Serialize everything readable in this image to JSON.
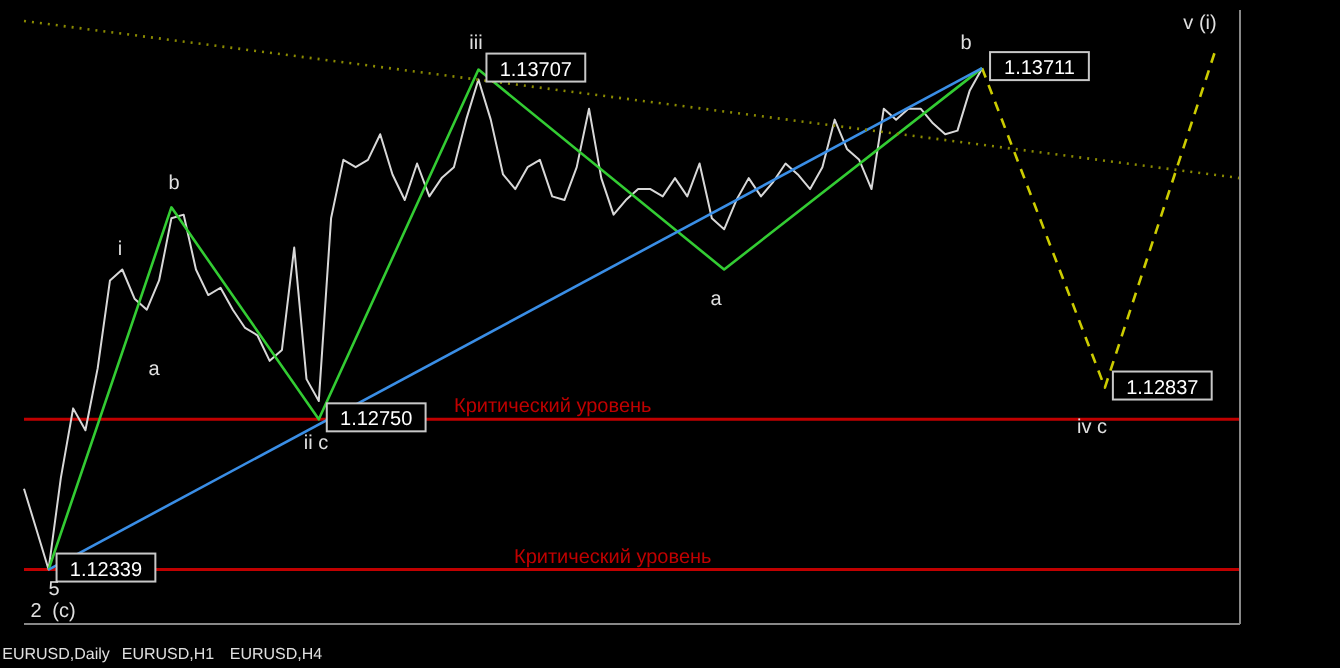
{
  "chart_data": {
    "type": "line",
    "categories": [
      null,
      null,
      null,
      null,
      null,
      null,
      null,
      null,
      null,
      null,
      null,
      null,
      null,
      null,
      null,
      null,
      null,
      null,
      null,
      null,
      null,
      null,
      null,
      null,
      null,
      null,
      null,
      null,
      null,
      null,
      null,
      null,
      null,
      null,
      null,
      null,
      null,
      null,
      null,
      null,
      null,
      null,
      null,
      null,
      null,
      null,
      null,
      null,
      null,
      null,
      null,
      null,
      null,
      null,
      null,
      null,
      null,
      null,
      null,
      null,
      null,
      null,
      null,
      null,
      null,
      null,
      null,
      null,
      null,
      null,
      null,
      null,
      null,
      null,
      null,
      null,
      null,
      null,
      null,
      null,
      null,
      null,
      null,
      null,
      null,
      null,
      null,
      null,
      null,
      null,
      null,
      null,
      null,
      null,
      null,
      null,
      null,
      null,
      null,
      null
    ],
    "series": [
      {
        "color": "#d8d8d8",
        "values": [
          1.1256,
          1.1245,
          1.12339,
          1.1259,
          1.1278,
          1.1272,
          1.1289,
          1.1313,
          1.1316,
          1.1308,
          1.1305,
          1.1313,
          1.133,
          1.1331,
          1.1316,
          1.1309,
          1.1311,
          1.1305,
          1.13,
          1.1298,
          1.1291,
          1.1294,
          1.1322,
          1.1286,
          1.128,
          1.133,
          1.1346,
          1.1344,
          1.1346,
          1.1353,
          1.1342,
          1.1335,
          1.1345,
          1.1336,
          1.1341,
          1.1344,
          1.1357,
          1.1368,
          1.1357,
          1.1342,
          1.1338,
          1.1344,
          1.1346,
          1.1336,
          1.1335,
          1.1344,
          1.136,
          1.1341,
          1.1331,
          1.1335,
          1.1338,
          1.1338,
          1.1336,
          1.1341,
          1.1336,
          1.1345,
          1.133,
          1.1327,
          1.1335,
          1.1341,
          1.1336,
          1.134,
          1.1345,
          1.1342,
          1.1338,
          1.1344,
          1.1357,
          1.1349,
          1.1346,
          1.1338,
          1.136,
          1.1357,
          1.136,
          1.136,
          1.1356,
          1.1353,
          1.1354,
          1.1365,
          1.1371,
          null,
          null,
          null,
          null,
          null,
          null,
          null,
          null,
          null,
          null,
          null,
          null,
          null,
          null,
          null,
          null,
          null,
          null,
          null,
          null,
          null
        ]
      },
      {
        "color": "#33cc33",
        "values": [
          null,
          null,
          1.12339,
          null,
          null,
          null,
          null,
          null,
          null,
          null,
          null,
          null,
          1.1333,
          null,
          null,
          null,
          null,
          null,
          null,
          null,
          null,
          null,
          null,
          null,
          1.1275,
          null,
          null,
          null,
          null,
          null,
          null,
          null,
          null,
          null,
          null,
          null,
          null,
          1.13707,
          null,
          null,
          null,
          null,
          null,
          null,
          null,
          null,
          null,
          null,
          null,
          null,
          null,
          null,
          null,
          null,
          null,
          null,
          null,
          1.1316,
          null,
          null,
          null,
          null,
          null,
          null,
          null,
          null,
          null,
          null,
          null,
          null,
          null,
          null,
          null,
          null,
          null,
          null,
          null,
          null,
          1.13711,
          null,
          null,
          null,
          null,
          null,
          null,
          null,
          null,
          null,
          null,
          null,
          null,
          null,
          null,
          null,
          null,
          null,
          null,
          null,
          null,
          null
        ],
        "value_labels": [
          null,
          null,
          "1.12339",
          null,
          null,
          null,
          null,
          null,
          null,
          null,
          null,
          null,
          null,
          null,
          null,
          null,
          null,
          null,
          null,
          null,
          null,
          null,
          null,
          null,
          "1.12750",
          null,
          null,
          null,
          null,
          null,
          null,
          null,
          null,
          null,
          null,
          null,
          null,
          "1.13707",
          null,
          null,
          null,
          null,
          null,
          null,
          null,
          null,
          null,
          null,
          null,
          null,
          null,
          null,
          null,
          null,
          null,
          null,
          null,
          null,
          null,
          null,
          null,
          null,
          null,
          null,
          null,
          null,
          null,
          null,
          null,
          null,
          null,
          null,
          null,
          null,
          null,
          null,
          null,
          null,
          "1.13711",
          null,
          null,
          null,
          null,
          null,
          null,
          null,
          null,
          null,
          null,
          null,
          null,
          null,
          null,
          null,
          null,
          null,
          null,
          null,
          null,
          null
        ]
      },
      {
        "color": "#cccc00",
        "line_style": "dashed",
        "values": [
          null,
          null,
          null,
          null,
          null,
          null,
          null,
          null,
          null,
          null,
          null,
          null,
          null,
          null,
          null,
          null,
          null,
          null,
          null,
          null,
          null,
          null,
          null,
          null,
          null,
          null,
          null,
          null,
          null,
          null,
          null,
          null,
          null,
          null,
          null,
          null,
          null,
          null,
          null,
          null,
          null,
          null,
          null,
          null,
          null,
          null,
          null,
          null,
          null,
          null,
          null,
          null,
          null,
          null,
          null,
          null,
          null,
          null,
          null,
          null,
          null,
          null,
          null,
          null,
          null,
          null,
          null,
          null,
          null,
          null,
          null,
          null,
          null,
          null,
          null,
          null,
          null,
          null,
          1.13711,
          null,
          null,
          null,
          null,
          null,
          null,
          null,
          null,
          null,
          1.12837,
          null,
          null,
          null,
          null,
          null,
          null,
          null,
          null,
          1.1376,
          null,
          null
        ],
        "value_labels": [
          null,
          null,
          null,
          null,
          null,
          null,
          null,
          null,
          null,
          null,
          null,
          null,
          null,
          null,
          null,
          null,
          null,
          null,
          null,
          null,
          null,
          null,
          null,
          null,
          null,
          null,
          null,
          null,
          null,
          null,
          null,
          null,
          null,
          null,
          null,
          null,
          null,
          null,
          null,
          null,
          null,
          null,
          null,
          null,
          null,
          null,
          null,
          null,
          null,
          null,
          null,
          null,
          null,
          null,
          null,
          null,
          null,
          null,
          null,
          null,
          null,
          null,
          null,
          null,
          null,
          null,
          null,
          null,
          null,
          null,
          null,
          null,
          null,
          null,
          null,
          null,
          null,
          null,
          null,
          null,
          null,
          null,
          null,
          null,
          null,
          null,
          null,
          null,
          "1.12837",
          null,
          null,
          null,
          null,
          null,
          null,
          null,
          null,
          null,
          null,
          null
        ]
      },
      {
        "color": "#3a8ee6",
        "values": [
          null,
          null,
          1.12339,
          null,
          null,
          null,
          null,
          null,
          null,
          null,
          null,
          null,
          null,
          null,
          null,
          null,
          null,
          null,
          null,
          null,
          null,
          null,
          null,
          null,
          null,
          null,
          null,
          null,
          null,
          null,
          null,
          null,
          null,
          null,
          null,
          null,
          null,
          null,
          null,
          null,
          null,
          null,
          null,
          null,
          null,
          null,
          null,
          null,
          null,
          null,
          null,
          null,
          null,
          null,
          null,
          null,
          null,
          null,
          null,
          null,
          null,
          null,
          null,
          null,
          null,
          null,
          null,
          null,
          null,
          null,
          null,
          null,
          null,
          null,
          null,
          null,
          null,
          null,
          1.13711,
          null,
          null,
          null,
          null,
          null,
          null,
          null,
          null,
          null,
          null,
          null,
          null,
          null,
          null,
          null,
          null,
          null,
          null,
          null,
          null,
          null
        ]
      },
      {
        "color": "#8a8a00",
        "line_style": "dotted",
        "values": [
          1.1384,
          null,
          null,
          null,
          null,
          null,
          null,
          null,
          null,
          null,
          null,
          null,
          null,
          null,
          null,
          null,
          null,
          null,
          null,
          null,
          null,
          null,
          null,
          null,
          null,
          null,
          null,
          null,
          null,
          null,
          null,
          null,
          null,
          null,
          null,
          null,
          null,
          null,
          null,
          null,
          null,
          null,
          null,
          null,
          null,
          null,
          null,
          null,
          null,
          null,
          null,
          null,
          null,
          null,
          null,
          null,
          null,
          null,
          null,
          null,
          null,
          null,
          null,
          null,
          null,
          null,
          null,
          null,
          null,
          null,
          null,
          null,
          null,
          null,
          null,
          null,
          null,
          null,
          null,
          null,
          null,
          null,
          null,
          null,
          null,
          null,
          null,
          null,
          null,
          null,
          null,
          null,
          null,
          null,
          null,
          null,
          null,
          null,
          null,
          1.1341
        ]
      }
    ],
    "ylim": [
      1.1219,
      1.1387
    ],
    "tick_labels": false,
    "marker": "none",
    "legend": false,
    "ref_lines": [
      {
        "axis": "y",
        "value": 1.1275,
        "label": "Критический уровень",
        "color": "#c00000"
      },
      {
        "axis": "y",
        "value": 1.12339,
        "label": "Критический уровень",
        "color": "#c00000"
      }
    ],
    "annotations": [
      "i",
      "b",
      "a",
      "ii c",
      "iii",
      "a",
      "b",
      "iv c",
      "v (i)",
      "5",
      "2",
      "(c)",
      "EURUSD,Daily",
      "EURUSD,H1",
      "EURUSD,H4"
    ]
  }
}
